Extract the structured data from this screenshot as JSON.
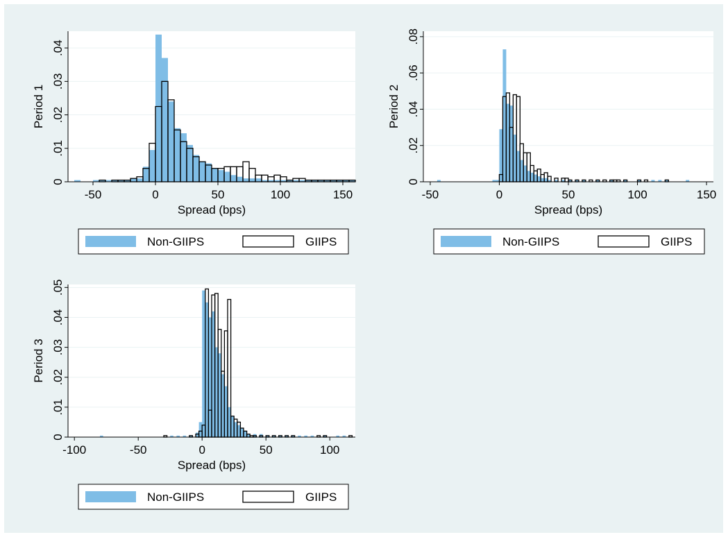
{
  "colors": {
    "graph_region": "#eaf2f3",
    "plot_area": "#ffffff",
    "gridline": "#eaf2f3",
    "non_giips_fill": "#7fbde6",
    "giips_outline": "#000000",
    "legend_box_fill": "#ffffff"
  },
  "chart_data": [
    {
      "type": "bar",
      "ylabel": "Period 1",
      "xlabel": "Spread (bps)",
      "bin_width": 5,
      "xlim": [
        -70,
        160
      ],
      "ylim": [
        0,
        0.045
      ],
      "xticks": [
        -50,
        0,
        50,
        100,
        150
      ],
      "xtick_labels": [
        "-50",
        "0",
        "50",
        "100",
        "150"
      ],
      "yticks": [
        0,
        0.01,
        0.02,
        0.03,
        0.04
      ],
      "ytick_labels": [
        "0",
        ".01",
        ".02",
        ".03",
        ".04"
      ],
      "grid": true,
      "legend": {
        "position": "bottom",
        "entries": [
          "Non-GIIPS",
          "GIIPS"
        ]
      },
      "series": [
        {
          "name": "Non-GIIPS",
          "style": "filled",
          "bins": [
            -65,
            -50,
            -45,
            -40,
            -35,
            -30,
            -25,
            -20,
            -15,
            -10,
            -5,
            0,
            5,
            10,
            15,
            20,
            25,
            30,
            35,
            40,
            45,
            50,
            55,
            60,
            65,
            70,
            75,
            80,
            85,
            90,
            95,
            100,
            105,
            110,
            115,
            120,
            125,
            130,
            135,
            140,
            145,
            150,
            155
          ],
          "values": [
            0.0005,
            0.0005,
            0.0005,
            0.0005,
            0.0005,
            0.0005,
            0.0005,
            0.001,
            0.001,
            0.0045,
            0.0095,
            0.044,
            0.037,
            0.024,
            0.016,
            0.0145,
            0.011,
            0.008,
            0.006,
            0.0055,
            0.004,
            0.0035,
            0.003,
            0.002,
            0.0015,
            0.001,
            0.001,
            0.001,
            0.0005,
            0.0005,
            0.0005,
            0.0005,
            0.0005,
            0.0005,
            0.0005,
            0.0005,
            0.0005,
            0.0005,
            0.0005,
            0.0005,
            0.0005,
            0.0005,
            0.0005
          ]
        },
        {
          "name": "GIIPS",
          "style": "outline",
          "bins": [
            -45,
            -35,
            -30,
            -25,
            -20,
            -15,
            -10,
            -5,
            0,
            5,
            10,
            15,
            20,
            25,
            30,
            35,
            40,
            45,
            50,
            55,
            60,
            65,
            70,
            75,
            80,
            85,
            90,
            95,
            100,
            105,
            110,
            115,
            120,
            125,
            130,
            135,
            140,
            145,
            150,
            155
          ],
          "values": [
            0.0005,
            0.0005,
            0.0005,
            0.0005,
            0.001,
            0.0015,
            0.004,
            0.0115,
            0.0225,
            0.03,
            0.0245,
            0.0155,
            0.012,
            0.01,
            0.0075,
            0.006,
            0.005,
            0.004,
            0.004,
            0.0045,
            0.0045,
            0.0045,
            0.006,
            0.004,
            0.002,
            0.002,
            0.0015,
            0.002,
            0.0015,
            0.0005,
            0.001,
            0.001,
            0.0005,
            0.0005,
            0.0005,
            0.0005,
            0.0005,
            0.0005,
            0.0005,
            0.0005
          ]
        }
      ]
    },
    {
      "type": "bar",
      "ylabel": "Period 2",
      "xlabel": "Spread (bps)",
      "bin_width": 2.5,
      "xlim": [
        -55,
        155
      ],
      "ylim": [
        0,
        0.083
      ],
      "xticks": [
        -50,
        0,
        50,
        100,
        150
      ],
      "xtick_labels": [
        "-50",
        "0",
        "50",
        "100",
        "150"
      ],
      "yticks": [
        0,
        0.02,
        0.04,
        0.06,
        0.08
      ],
      "ytick_labels": [
        "0",
        ".02",
        ".04",
        ".06",
        ".08"
      ],
      "grid": true,
      "legend": {
        "position": "bottom",
        "entries": [
          "Non-GIIPS",
          "GIIPS"
        ]
      },
      "series": [
        {
          "name": "Non-GIIPS",
          "style": "filled",
          "bins": [
            -45,
            -5,
            -2.5,
            0,
            2.5,
            5,
            7.5,
            10,
            12.5,
            15,
            17.5,
            20,
            22.5,
            25,
            27.5,
            30,
            32.5,
            35,
            40,
            45,
            50,
            55,
            60,
            70,
            80,
            90,
            100,
            110,
            115,
            120,
            135
          ],
          "values": [
            0.001,
            0.001,
            0.001,
            0.029,
            0.073,
            0.043,
            0.042,
            0.026,
            0.017,
            0.012,
            0.009,
            0.006,
            0.005,
            0.004,
            0.003,
            0.002,
            0.002,
            0.001,
            0.001,
            0.001,
            0.001,
            0.001,
            0.001,
            0.001,
            0.001,
            0.001,
            0.001,
            0.001,
            0.001,
            0.001,
            0.001
          ]
        },
        {
          "name": "GIIPS",
          "style": "outline",
          "bins": [
            0,
            2.5,
            5,
            7.5,
            10,
            12.5,
            15,
            17.5,
            20,
            22.5,
            25,
            27.5,
            30,
            32.5,
            35,
            40,
            45,
            47.5,
            50,
            55,
            60,
            65,
            70,
            75,
            80,
            82.5,
            85,
            90,
            100,
            105,
            120
          ],
          "values": [
            0.004,
            0.047,
            0.049,
            0.03,
            0.048,
            0.047,
            0.021,
            0.016,
            0.016,
            0.009,
            0.006,
            0.007,
            0.004,
            0.005,
            0.003,
            0.002,
            0.002,
            0.002,
            0.001,
            0.001,
            0.001,
            0.001,
            0.001,
            0.001,
            0.001,
            0.001,
            0.001,
            0.001,
            0.001,
            0.001,
            0.001
          ]
        }
      ]
    },
    {
      "type": "bar",
      "ylabel": "Period 3",
      "xlabel": "Spread (bps)",
      "bin_width": 2.5,
      "xlim": [
        -105,
        120
      ],
      "ylim": [
        0,
        0.051
      ],
      "xticks": [
        -100,
        -50,
        0,
        50,
        100
      ],
      "xtick_labels": [
        "-100",
        "-50",
        "0",
        "50",
        "100"
      ],
      "yticks": [
        0,
        0.01,
        0.02,
        0.03,
        0.04,
        0.05
      ],
      "ytick_labels": [
        "0",
        ".01",
        ".02",
        ".03",
        ".04",
        ".05"
      ],
      "grid": true,
      "legend": {
        "position": "bottom",
        "entries": [
          "Non-GIIPS",
          "GIIPS"
        ]
      },
      "series": [
        {
          "name": "Non-GIIPS",
          "style": "filled",
          "bins": [
            -80,
            -25,
            -20,
            -15,
            -10,
            -5,
            -2.5,
            0,
            2.5,
            5,
            7.5,
            10,
            12.5,
            15,
            17.5,
            20,
            22.5,
            25,
            27.5,
            30,
            32.5,
            35,
            40,
            45,
            50,
            55,
            60,
            65,
            70,
            75,
            80,
            85,
            95,
            105,
            110
          ],
          "values": [
            0.0005,
            0.0005,
            0.0005,
            0.0005,
            0.0005,
            0.0015,
            0.005,
            0.049,
            0.045,
            0.04,
            0.042,
            0.03,
            0.028,
            0.021,
            0.017,
            0.01,
            0.007,
            0.005,
            0.004,
            0.003,
            0.002,
            0.001,
            0.001,
            0.001,
            0.0005,
            0.0005,
            0.0005,
            0.0005,
            0.0005,
            0.0005,
            0.0005,
            0.0005,
            0.0005,
            0.0005,
            0.0005
          ]
        },
        {
          "name": "GIIPS",
          "style": "outline",
          "bins": [
            -30,
            -10,
            -5,
            -2.5,
            0,
            2.5,
            5,
            7.5,
            10,
            12.5,
            15,
            17.5,
            20,
            22.5,
            25,
            27.5,
            30,
            32.5,
            35,
            37.5,
            40,
            45,
            50,
            55,
            60,
            65,
            70,
            90,
            95,
            115
          ],
          "values": [
            0.0005,
            0.0005,
            0.001,
            0.002,
            0.004,
            0.0495,
            0.009,
            0.0475,
            0.048,
            0.036,
            0.022,
            0.0355,
            0.046,
            0.007,
            0.006,
            0.005,
            0.003,
            0.002,
            0.001,
            0.0005,
            0.0005,
            0.0005,
            0.0005,
            0.0005,
            0.0005,
            0.0005,
            0.0005,
            0.0005,
            0.0005,
            0.0005
          ]
        }
      ]
    }
  ]
}
